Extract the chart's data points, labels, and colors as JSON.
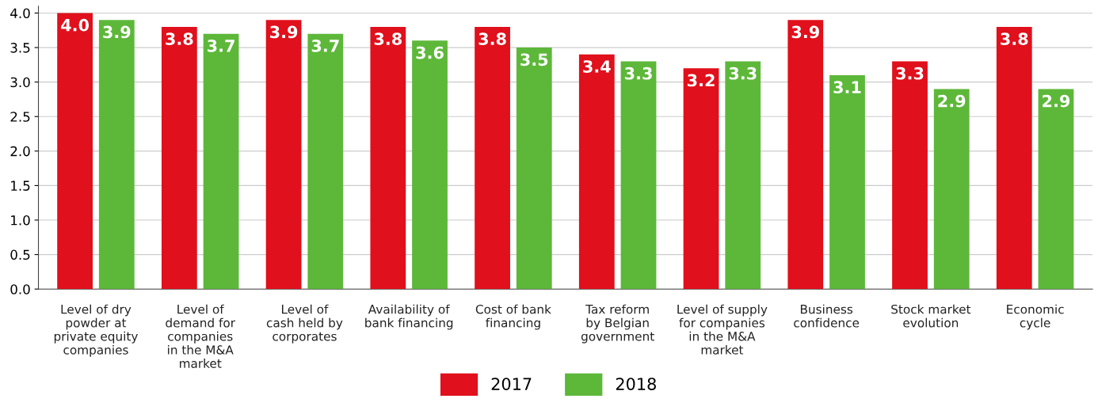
{
  "chart_data": {
    "type": "bar",
    "categories": [
      "Level of dry\npowder at\nprivate equity\ncompanies",
      "Level of\ndemand for\ncompanies\nin the M&A\nmarket",
      "Level of\ncash held by\ncorporates",
      "Availability of\nbank financing",
      "Cost of bank\nfinancing",
      "Tax reform\nby Belgian\ngovernment",
      "Level of supply\nfor companies\nin the M&A\nmarket",
      "Business\nconfidence",
      "Stock market\nevolution",
      "Economic\ncycle"
    ],
    "series": [
      {
        "name": "2017",
        "color": "#e0101c",
        "values": [
          4.0,
          3.8,
          3.9,
          3.8,
          3.8,
          3.4,
          3.2,
          3.9,
          3.3,
          3.8
        ],
        "value_labels": [
          "4.0",
          "3.8",
          "3.9",
          "3.8",
          "3.8",
          "3.4",
          "3.2",
          "3.9",
          "3.3",
          "3.8"
        ]
      },
      {
        "name": "2018",
        "color": "#5db83a",
        "values": [
          3.9,
          3.7,
          3.7,
          3.6,
          3.5,
          3.3,
          3.3,
          3.1,
          2.9,
          2.9
        ],
        "value_labels": [
          "3.9",
          "3.7",
          "3.7",
          "3.6",
          "3.5",
          "3.3",
          "3.3",
          "3.1",
          "2.9",
          "2.9"
        ]
      }
    ],
    "ylim": [
      0,
      4.1
    ],
    "yticks": [
      {
        "value": 0,
        "label": "0.0"
      },
      {
        "value": 0.5,
        "label": "0.5"
      },
      {
        "value": 1,
        "label": "1.0"
      },
      {
        "value": 1.5,
        "label": "1.5"
      },
      {
        "value": 2,
        "label": "2.0"
      },
      {
        "value": 2.5,
        "label": "2.5"
      },
      {
        "value": 3,
        "label": "3.0"
      },
      {
        "value": 3.5,
        "label": "3.5"
      },
      {
        "value": 4,
        "label": "4.0"
      }
    ],
    "grid": "y",
    "legend": "bottom"
  }
}
